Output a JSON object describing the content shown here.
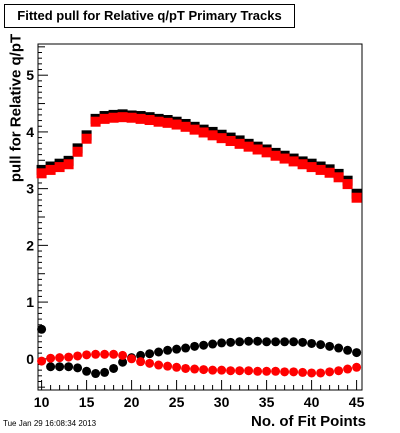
{
  "chart_data": {
    "type": "scatter",
    "title": "Fitted pull for Relative q/pT Primary Tracks",
    "xlabel": "No. of Fit Points",
    "ylabel": "pull for Relative q/pT",
    "xlim": [
      9.6,
      45.6
    ],
    "ylim": [
      -0.55,
      5.55
    ],
    "xticks": [
      10,
      15,
      20,
      25,
      30,
      35,
      40,
      45
    ],
    "yticks": [
      0,
      1,
      2,
      3,
      4,
      5
    ],
    "grid": false,
    "legend": "none",
    "timestamp": "Tue Jan 29 16:08:34 2013",
    "x": [
      10,
      11,
      12,
      13,
      14,
      15,
      16,
      17,
      18,
      19,
      20,
      21,
      22,
      23,
      24,
      25,
      26,
      27,
      28,
      29,
      30,
      31,
      32,
      33,
      34,
      35,
      36,
      37,
      38,
      39,
      40,
      41,
      42,
      43,
      44,
      45
    ],
    "series": [
      {
        "color": "#000000",
        "marker": "square",
        "values": [
          3.33,
          3.39,
          3.44,
          3.49,
          3.71,
          3.94,
          4.23,
          4.28,
          4.3,
          4.31,
          4.29,
          4.28,
          4.26,
          4.23,
          4.21,
          4.18,
          4.14,
          4.09,
          4.04,
          4.0,
          3.95,
          3.9,
          3.85,
          3.79,
          3.74,
          3.69,
          3.63,
          3.58,
          3.53,
          3.48,
          3.44,
          3.39,
          3.34,
          3.26,
          3.14,
          2.91
        ]
      },
      {
        "color": "#ff0000",
        "marker": "square",
        "values": [
          3.27,
          3.33,
          3.38,
          3.43,
          3.65,
          3.88,
          4.18,
          4.23,
          4.25,
          4.26,
          4.25,
          4.23,
          4.21,
          4.18,
          4.16,
          4.13,
          4.09,
          4.04,
          3.99,
          3.94,
          3.89,
          3.84,
          3.79,
          3.74,
          3.69,
          3.64,
          3.58,
          3.53,
          3.48,
          3.43,
          3.38,
          3.33,
          3.28,
          3.2,
          3.08,
          2.84
        ]
      },
      {
        "color": "#000000",
        "marker": "circle",
        "values": [
          0.52,
          -0.14,
          -0.14,
          -0.14,
          -0.16,
          -0.22,
          -0.26,
          -0.24,
          -0.17,
          -0.06,
          0.02,
          0.06,
          0.09,
          0.12,
          0.15,
          0.17,
          0.19,
          0.22,
          0.24,
          0.26,
          0.28,
          0.29,
          0.3,
          0.31,
          0.31,
          0.3,
          0.3,
          0.3,
          0.3,
          0.29,
          0.27,
          0.25,
          0.22,
          0.19,
          0.15,
          0.11
        ]
      },
      {
        "color": "#ff0000",
        "marker": "circle",
        "values": [
          -0.04,
          0.01,
          0.02,
          0.03,
          0.05,
          0.07,
          0.08,
          0.08,
          0.08,
          0.06,
          0.0,
          -0.05,
          -0.08,
          -0.11,
          -0.13,
          -0.15,
          -0.17,
          -0.18,
          -0.19,
          -0.2,
          -0.2,
          -0.21,
          -0.21,
          -0.21,
          -0.22,
          -0.22,
          -0.22,
          -0.23,
          -0.23,
          -0.24,
          -0.25,
          -0.25,
          -0.23,
          -0.21,
          -0.18,
          -0.15
        ]
      }
    ]
  }
}
